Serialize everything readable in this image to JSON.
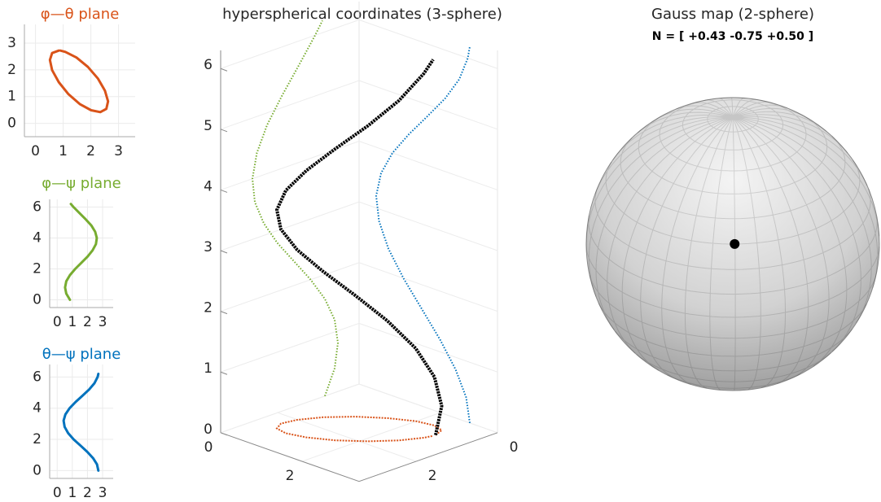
{
  "chart_data": [
    {
      "type": "line",
      "title": "φ—θ plane",
      "color": "#d95319",
      "x": [
        0.84,
        0.6,
        0.52,
        0.6,
        0.84,
        1.19,
        1.6,
        2.01,
        2.34,
        2.56,
        2.62,
        2.51,
        2.26,
        1.89,
        1.48,
        1.08,
        0.9
      ],
      "values": [
        2.72,
        2.63,
        2.37,
        1.99,
        1.54,
        1.09,
        0.72,
        0.49,
        0.42,
        0.54,
        0.82,
        1.22,
        1.67,
        2.11,
        2.46,
        2.67,
        2.72
      ],
      "xlim": [
        -0.4,
        3.6
      ],
      "ylim": [
        -0.5,
        3.7
      ],
      "xticks": [
        0,
        1,
        2,
        3
      ],
      "yticks": [
        0,
        1,
        2,
        3
      ],
      "grid": true
    },
    {
      "type": "line",
      "title": "φ—ψ plane",
      "color": "#77ac30",
      "x": [
        0.84,
        0.6,
        0.52,
        0.6,
        0.84,
        1.19,
        1.6,
        2.01,
        2.34,
        2.56,
        2.62,
        2.51,
        2.26,
        1.89,
        1.48,
        1.08,
        0.9
      ],
      "values": [
        0,
        0.4,
        0.8,
        1.2,
        1.6,
        2.0,
        2.4,
        2.8,
        3.2,
        3.6,
        4.0,
        4.4,
        4.8,
        5.2,
        5.6,
        6.0,
        6.2
      ],
      "xlim": [
        -0.5,
        3.7
      ],
      "ylim": [
        -0.5,
        6.5
      ],
      "xticks": [
        0,
        1,
        2,
        3
      ],
      "yticks": [
        0,
        2,
        4,
        6
      ],
      "grid": true
    },
    {
      "type": "line",
      "title": "θ—ψ plane",
      "color": "#0072bd",
      "x": [
        2.72,
        2.63,
        2.37,
        1.99,
        1.54,
        1.09,
        0.72,
        0.49,
        0.42,
        0.54,
        0.82,
        1.22,
        1.67,
        2.11,
        2.46,
        2.67,
        2.72
      ],
      "values": [
        0,
        0.4,
        0.8,
        1.2,
        1.6,
        2.0,
        2.4,
        2.8,
        3.2,
        3.6,
        4.0,
        4.4,
        4.8,
        5.2,
        5.6,
        6.0,
        6.2
      ],
      "xlim": [
        -0.5,
        3.7
      ],
      "ylim": [
        -0.5,
        6.8
      ],
      "xticks": [
        0,
        1,
        2,
        3
      ],
      "yticks": [
        0,
        2,
        4,
        6
      ],
      "grid": true
    },
    {
      "type": "line3d",
      "title": "hyperspherical coordinates (3-sphere)",
      "color": "#000000",
      "x": [
        0.84,
        0.6,
        0.52,
        0.6,
        0.84,
        1.19,
        1.6,
        2.01,
        2.34,
        2.56,
        2.62,
        2.51,
        2.26,
        1.89,
        1.48,
        1.08,
        0.9
      ],
      "y": [
        2.72,
        2.63,
        2.37,
        1.99,
        1.54,
        1.09,
        0.72,
        0.49,
        0.42,
        0.54,
        0.82,
        1.22,
        1.67,
        2.11,
        2.46,
        2.67,
        2.72
      ],
      "z": [
        0,
        0.4,
        0.8,
        1.2,
        1.6,
        2.0,
        2.4,
        2.8,
        3.2,
        3.6,
        4.0,
        4.4,
        4.8,
        5.2,
        5.6,
        6.0,
        6.2
      ],
      "xlim": [
        0,
        3.4
      ],
      "ylim": [
        0,
        3.4
      ],
      "zlim": [
        0,
        6.3
      ],
      "xticks": [
        0,
        2
      ],
      "yticks": [
        0,
        2
      ],
      "zticks": [
        0,
        1,
        2,
        3,
        4,
        5,
        6
      ],
      "projection_colors": {
        "xz": "#77ac30",
        "yz": "#0072bd",
        "xy": "#d95319"
      },
      "grid": true
    },
    {
      "type": "sphere",
      "title": "Gauss map (2-sphere)",
      "subtitle": "N = [ +0.43  -0.75  +0.50 ]",
      "point": [
        0.43,
        -0.75,
        0.5
      ],
      "color": "#000000"
    }
  ]
}
